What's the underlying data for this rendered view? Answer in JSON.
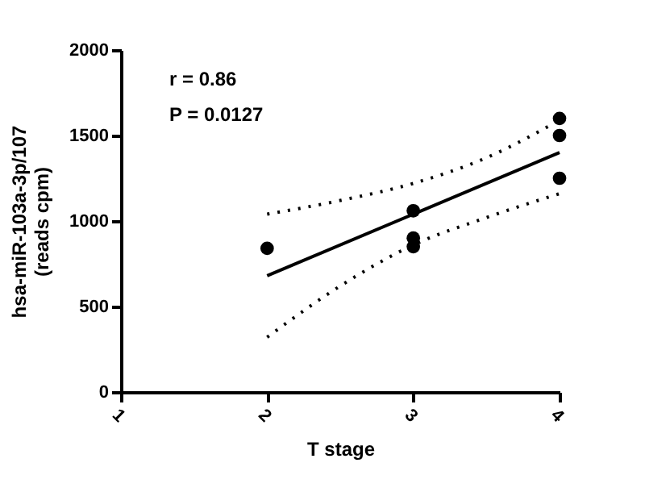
{
  "chart_data": {
    "type": "scatter",
    "xlabel": "T stage",
    "ylabel": "hsa-miR-103a-3p/107\n(reads cpm)",
    "xlim": [
      1,
      4
    ],
    "xticks": [
      1,
      2,
      3,
      4
    ],
    "ylim": [
      0,
      2000
    ],
    "yticks": [
      0,
      500,
      1000,
      1500,
      2000
    ],
    "grid": false,
    "annotations": [
      "r = 0.86",
      "P = 0.0127"
    ],
    "series": [
      {
        "color": "#000000",
        "marker": "circle",
        "x": [
          2,
          3,
          3,
          3,
          4,
          4,
          4
        ],
        "values": [
          840,
          1060,
          900,
          850,
          1600,
          1500,
          1250
        ]
      },
      {
        "type": "line",
        "color": "#000000",
        "line_style": "solid",
        "marker": "none",
        "x": [
          2,
          4
        ],
        "values": [
          680,
          1400
        ]
      },
      {
        "type": "line",
        "color": "#000000",
        "line_style": "dotted",
        "marker": "none",
        "x": [
          2,
          2.5,
          3,
          3.5,
          4
        ],
        "values": [
          1040,
          1120,
          1220,
          1370,
          1590
        ]
      },
      {
        "type": "line",
        "color": "#000000",
        "line_style": "dotted",
        "marker": "none",
        "x": [
          2,
          2.5,
          3,
          3.5,
          4
        ],
        "values": [
          320,
          620,
          860,
          1020,
          1160
        ]
      }
    ]
  }
}
